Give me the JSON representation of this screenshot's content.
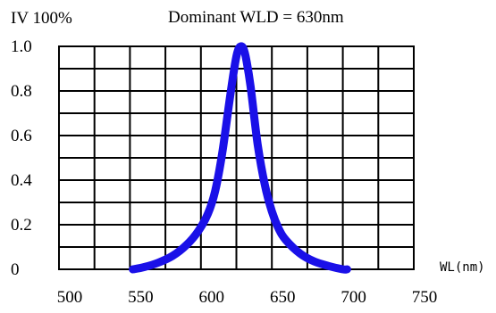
{
  "chart_data": {
    "type": "line",
    "title": "Dominant WLD = 630nm",
    "ylabel": "IV 100%",
    "xlabel": "WL(nm)",
    "xlim": [
      500,
      750
    ],
    "ylim": [
      0,
      1.0
    ],
    "x_ticks": [
      500,
      550,
      600,
      650,
      700,
      750
    ],
    "x_tick_labels": [
      "500",
      "550",
      "600",
      "650",
      "700",
      "750"
    ],
    "y_ticks": [
      0,
      0.2,
      0.4,
      0.6,
      0.8,
      1.0
    ],
    "y_tick_labels": [
      "0",
      "0.2",
      "0.4",
      "0.6",
      "0.8",
      "1.0"
    ],
    "grid": true,
    "series": [
      {
        "color": "#1a10e8",
        "x": [
          552,
          560,
          570,
          580,
          590,
          598,
          605,
          610,
          615,
          620,
          624,
          626,
          628,
          630,
          632,
          635,
          640,
          645,
          650,
          655,
          660,
          670,
          680,
          690,
          700,
          703
        ],
        "y": [
          0.0,
          0.01,
          0.03,
          0.06,
          0.11,
          0.17,
          0.25,
          0.35,
          0.52,
          0.75,
          0.92,
          0.98,
          1.0,
          0.99,
          0.94,
          0.82,
          0.56,
          0.38,
          0.26,
          0.18,
          0.13,
          0.07,
          0.035,
          0.015,
          0.0,
          0.0
        ]
      }
    ]
  }
}
